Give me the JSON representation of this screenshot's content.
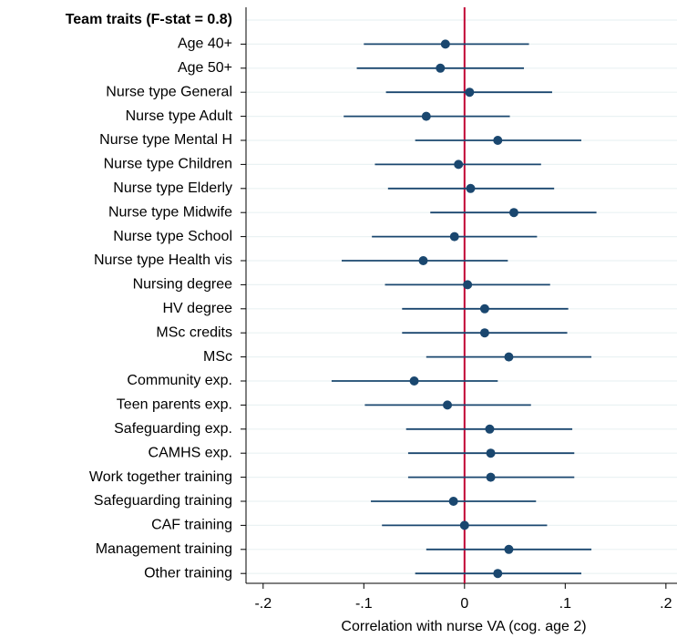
{
  "chart_data": {
    "type": "coefplot",
    "group_label": "Team traits (F-stat = 0.8)",
    "x_label": "Correlation with nurse VA (cog. age 2)",
    "categories": [
      "Age 40+",
      "Age 50+",
      "Nurse type General",
      "Nurse type Adult",
      "Nurse type Mental H",
      "Nurse type Children",
      "Nurse type Elderly",
      "Nurse type Midwife",
      "Nurse type School",
      "Nurse type Health vis",
      "Nursing degree",
      "HV degree",
      "MSc credits",
      "MSc",
      "Community exp.",
      "Teen parents exp.",
      "Safeguarding exp.",
      "CAMHS exp.",
      "Work together training",
      "Safeguarding training",
      "CAF training",
      "Management training",
      "Other training"
    ],
    "values": [
      -0.019,
      -0.024,
      0.005,
      -0.038,
      0.033,
      -0.006,
      0.006,
      0.049,
      -0.01,
      -0.041,
      0.003,
      0.02,
      0.02,
      0.044,
      -0.05,
      -0.017,
      0.025,
      0.026,
      0.026,
      -0.011,
      0.0,
      0.044,
      0.033
    ],
    "lower": [
      -0.1,
      -0.107,
      -0.078,
      -0.12,
      -0.049,
      -0.089,
      -0.076,
      -0.034,
      -0.092,
      -0.122,
      -0.079,
      -0.062,
      -0.062,
      -0.038,
      -0.132,
      -0.099,
      -0.058,
      -0.056,
      -0.056,
      -0.093,
      -0.082,
      -0.038,
      -0.049
    ],
    "upper": [
      0.064,
      0.059,
      0.087,
      0.045,
      0.116,
      0.076,
      0.089,
      0.131,
      0.072,
      0.043,
      0.085,
      0.103,
      0.102,
      0.126,
      0.033,
      0.066,
      0.107,
      0.109,
      0.109,
      0.071,
      0.082,
      0.126,
      0.116
    ],
    "color": "#1a476f",
    "refline": {
      "value": 0,
      "color": "#c10534"
    },
    "xlim": [
      -0.217,
      0.211
    ],
    "xticks": [
      {
        "value": -0.2,
        "label": "-.2"
      },
      {
        "value": -0.1,
        "label": "-.1"
      },
      0,
      {
        "value": 0.1,
        "label": ".1"
      },
      {
        "value": 0.2,
        "label": ".2"
      }
    ],
    "grid": true
  }
}
